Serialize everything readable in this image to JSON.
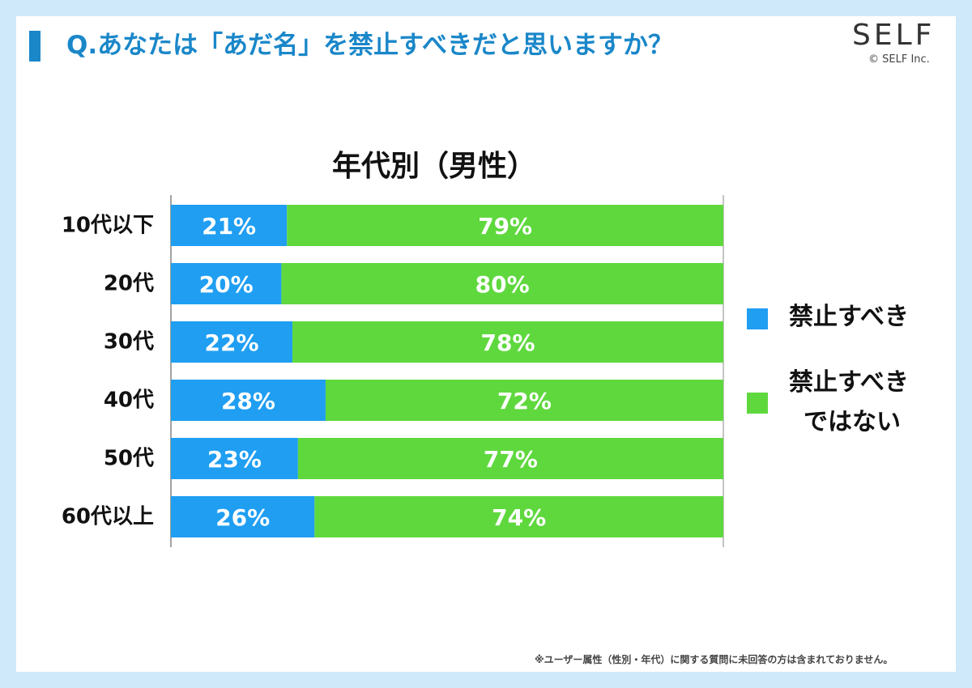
{
  "question": "Q.あなたは「あだ名」を禁止すべきだと思いますか？",
  "brand": {
    "logo": "SELF",
    "copyright": "© SELF Inc."
  },
  "footnote": "※ユーザー属性（性別・年代）に関する質問に未回答の方は含まれておりません。",
  "colors": {
    "header": "#1a87c9",
    "series_should": "#1f9ef2",
    "series_should_not": "#5fd83e"
  },
  "chart_data": {
    "type": "bar",
    "orientation": "horizontal",
    "stacked": true,
    "title": "年代別（男性）",
    "categories": [
      "10代以下",
      "20代",
      "30代",
      "40代",
      "50代",
      "60代以上"
    ],
    "series": [
      {
        "name": "禁止すべき",
        "values": [
          21,
          20,
          22,
          28,
          23,
          26
        ],
        "labels": [
          "21%",
          "20%",
          "22%",
          "28%",
          "23%",
          "26%"
        ]
      },
      {
        "name": "禁止すべきではない",
        "values": [
          79,
          80,
          78,
          72,
          77,
          74
        ],
        "labels": [
          "79%",
          "80%",
          "78%",
          "72%",
          "77%",
          "74%"
        ]
      }
    ],
    "xlim": [
      0,
      100
    ],
    "grid": false,
    "legend": {
      "placement": "right",
      "entries": [
        "禁止すべき",
        "禁止すべき\nではない"
      ],
      "lines": [
        [
          "禁止すべき"
        ],
        [
          "禁止すべき",
          "ではない"
        ]
      ]
    }
  }
}
